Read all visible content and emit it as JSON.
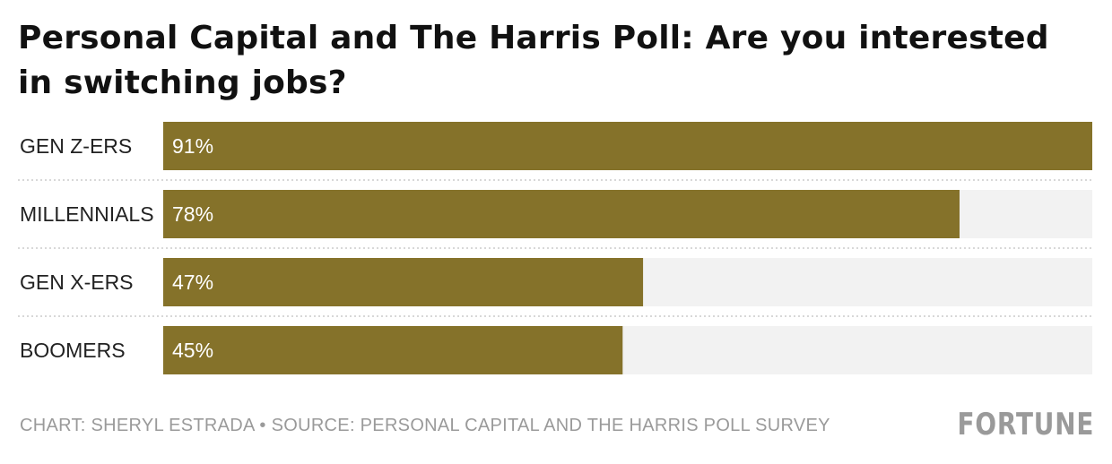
{
  "title": "Personal Capital and The Harris Poll: Are you interested in switching jobs?",
  "footer": "CHART: SHERYL ESTRADA • SOURCE: PERSONAL CAPITAL AND THE HARRIS POLL SURVEY",
  "brand": "FORTUNE",
  "colors": {
    "bar": "#85722a",
    "track": "#f2f2f2",
    "label": "#222222",
    "value_text": "#ffffff",
    "divider": "#cccccc"
  },
  "chart_data": {
    "type": "bar",
    "orientation": "horizontal",
    "categories": [
      "GEN Z-ERS",
      "MILLENNIALS",
      "GEN X-ERS",
      "BOOMERS"
    ],
    "values": [
      91,
      78,
      47,
      45
    ],
    "value_labels": [
      "91%",
      "78%",
      "47%",
      "45%"
    ],
    "xlim": [
      0,
      91
    ],
    "xlabel": "",
    "ylabel": "",
    "grid": false,
    "legend": "none"
  }
}
